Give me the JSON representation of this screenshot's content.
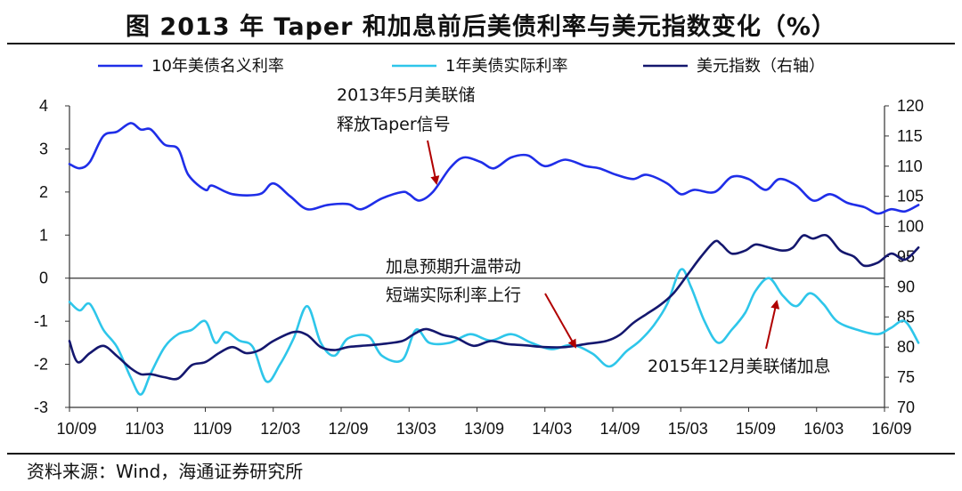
{
  "title": "图  2013 年 Taper 和加息前后美债利率与美元指数变化（%）",
  "source": "资料来源：Wind，海通证券研究所",
  "chart_data": {
    "type": "line",
    "x_labels": [
      "10/09",
      "11/03",
      "11/09",
      "12/03",
      "12/09",
      "13/03",
      "13/09",
      "14/03",
      "14/09",
      "15/03",
      "15/09",
      "16/03",
      "16/09"
    ],
    "y_left": {
      "range": [
        -3,
        4
      ],
      "ticks": [
        "-3",
        "-2",
        "-1",
        "0",
        "1",
        "2",
        "3",
        "4"
      ]
    },
    "y_right": {
      "range": [
        70,
        120
      ],
      "ticks": [
        "70",
        "75",
        "80",
        "85",
        "90",
        "95",
        "100",
        "105",
        "110",
        "115",
        "120"
      ]
    },
    "legend": [
      {
        "name": "10年美债名义利率",
        "color": "#1f2ee8"
      },
      {
        "name": "1年美债实际利率",
        "color": "#2ec6ea"
      },
      {
        "name": "美元指数（右轴）",
        "color": "#14176e"
      }
    ],
    "series": [
      {
        "name": "10年美债名义利率",
        "axis": "left",
        "color": "#1f2ee8",
        "values": [
          [
            0,
            2.65
          ],
          [
            0.15,
            2.55
          ],
          [
            0.3,
            2.7
          ],
          [
            0.5,
            3.3
          ],
          [
            0.7,
            3.4
          ],
          [
            0.9,
            3.6
          ],
          [
            1.05,
            3.45
          ],
          [
            1.2,
            3.45
          ],
          [
            1.4,
            3.1
          ],
          [
            1.6,
            3.0
          ],
          [
            1.75,
            2.4
          ],
          [
            2.0,
            2.05
          ],
          [
            2.1,
            2.15
          ],
          [
            2.4,
            1.95
          ],
          [
            2.8,
            1.95
          ],
          [
            3.0,
            2.2
          ],
          [
            3.25,
            1.9
          ],
          [
            3.5,
            1.6
          ],
          [
            3.8,
            1.7
          ],
          [
            4.1,
            1.72
          ],
          [
            4.3,
            1.6
          ],
          [
            4.6,
            1.85
          ],
          [
            4.9,
            2.0
          ],
          [
            5.0,
            1.95
          ],
          [
            5.15,
            1.8
          ],
          [
            5.35,
            2.0
          ],
          [
            5.6,
            2.55
          ],
          [
            5.8,
            2.8
          ],
          [
            6.05,
            2.7
          ],
          [
            6.25,
            2.55
          ],
          [
            6.5,
            2.8
          ],
          [
            6.75,
            2.85
          ],
          [
            7.0,
            2.6
          ],
          [
            7.3,
            2.75
          ],
          [
            7.6,
            2.6
          ],
          [
            7.8,
            2.55
          ],
          [
            8.05,
            2.4
          ],
          [
            8.3,
            2.3
          ],
          [
            8.5,
            2.4
          ],
          [
            8.8,
            2.2
          ],
          [
            9.0,
            1.95
          ],
          [
            9.2,
            2.05
          ],
          [
            9.5,
            2.0
          ],
          [
            9.75,
            2.35
          ],
          [
            10.0,
            2.3
          ],
          [
            10.25,
            2.05
          ],
          [
            10.45,
            2.3
          ],
          [
            10.7,
            2.15
          ],
          [
            10.95,
            1.8
          ],
          [
            11.2,
            1.95
          ],
          [
            11.45,
            1.75
          ],
          [
            11.7,
            1.65
          ],
          [
            11.9,
            1.5
          ],
          [
            12.1,
            1.6
          ],
          [
            12.3,
            1.55
          ],
          [
            12.5,
            1.7
          ]
        ]
      },
      {
        "name": "1年美债实际利率",
        "axis": "left",
        "color": "#2ec6ea",
        "values": [
          [
            0,
            -0.55
          ],
          [
            0.15,
            -0.75
          ],
          [
            0.3,
            -0.6
          ],
          [
            0.5,
            -1.2
          ],
          [
            0.7,
            -1.6
          ],
          [
            0.9,
            -2.3
          ],
          [
            1.05,
            -2.7
          ],
          [
            1.2,
            -2.2
          ],
          [
            1.4,
            -1.6
          ],
          [
            1.6,
            -1.3
          ],
          [
            1.8,
            -1.2
          ],
          [
            2.0,
            -1.0
          ],
          [
            2.15,
            -1.5
          ],
          [
            2.3,
            -1.25
          ],
          [
            2.5,
            -1.45
          ],
          [
            2.7,
            -1.6
          ],
          [
            2.9,
            -2.4
          ],
          [
            3.1,
            -2.0
          ],
          [
            3.3,
            -1.4
          ],
          [
            3.5,
            -0.65
          ],
          [
            3.7,
            -1.5
          ],
          [
            3.9,
            -1.8
          ],
          [
            4.1,
            -1.4
          ],
          [
            4.4,
            -1.35
          ],
          [
            4.6,
            -1.8
          ],
          [
            4.9,
            -1.9
          ],
          [
            5.1,
            -1.2
          ],
          [
            5.3,
            -1.5
          ],
          [
            5.6,
            -1.5
          ],
          [
            5.9,
            -1.3
          ],
          [
            6.2,
            -1.45
          ],
          [
            6.5,
            -1.3
          ],
          [
            6.8,
            -1.5
          ],
          [
            7.1,
            -1.65
          ],
          [
            7.4,
            -1.55
          ],
          [
            7.7,
            -1.75
          ],
          [
            7.95,
            -2.05
          ],
          [
            8.2,
            -1.7
          ],
          [
            8.4,
            -1.45
          ],
          [
            8.6,
            -1.1
          ],
          [
            8.8,
            -0.6
          ],
          [
            9.0,
            0.2
          ],
          [
            9.15,
            -0.2
          ],
          [
            9.35,
            -1.0
          ],
          [
            9.55,
            -1.5
          ],
          [
            9.75,
            -1.2
          ],
          [
            9.95,
            -0.8
          ],
          [
            10.1,
            -0.3
          ],
          [
            10.3,
            0.0
          ],
          [
            10.5,
            -0.4
          ],
          [
            10.7,
            -0.65
          ],
          [
            10.9,
            -0.35
          ],
          [
            11.1,
            -0.6
          ],
          [
            11.3,
            -1.0
          ],
          [
            11.6,
            -1.2
          ],
          [
            11.9,
            -1.3
          ],
          [
            12.1,
            -1.15
          ],
          [
            12.3,
            -1.0
          ],
          [
            12.5,
            -1.5
          ]
        ]
      },
      {
        "name": "美元指数（右轴）",
        "axis": "right",
        "color": "#14176e",
        "values": [
          [
            0,
            81.0
          ],
          [
            0.12,
            77.5
          ],
          [
            0.3,
            79.0
          ],
          [
            0.5,
            80.2
          ],
          [
            0.7,
            78.5
          ],
          [
            0.9,
            76.5
          ],
          [
            1.05,
            75.5
          ],
          [
            1.2,
            75.5
          ],
          [
            1.4,
            75.0
          ],
          [
            1.6,
            74.8
          ],
          [
            1.8,
            77.0
          ],
          [
            2.0,
            77.5
          ],
          [
            2.2,
            79.0
          ],
          [
            2.4,
            80.0
          ],
          [
            2.6,
            79.0
          ],
          [
            2.8,
            79.5
          ],
          [
            3.0,
            81.0
          ],
          [
            3.3,
            82.5
          ],
          [
            3.5,
            82.0
          ],
          [
            3.7,
            80.0
          ],
          [
            3.9,
            79.5
          ],
          [
            4.1,
            80.0
          ],
          [
            4.3,
            80.2
          ],
          [
            4.6,
            80.5
          ],
          [
            4.9,
            81.0
          ],
          [
            5.05,
            82.0
          ],
          [
            5.25,
            83.0
          ],
          [
            5.5,
            82.0
          ],
          [
            5.7,
            81.5
          ],
          [
            5.95,
            80.2
          ],
          [
            6.2,
            81.0
          ],
          [
            6.45,
            80.5
          ],
          [
            6.7,
            80.3
          ],
          [
            7.0,
            80.0
          ],
          [
            7.3,
            80.0
          ],
          [
            7.6,
            80.5
          ],
          [
            7.9,
            81.0
          ],
          [
            8.1,
            82.0
          ],
          [
            8.3,
            84.0
          ],
          [
            8.5,
            85.5
          ],
          [
            8.7,
            87.0
          ],
          [
            8.9,
            89.0
          ],
          [
            9.1,
            92.0
          ],
          [
            9.3,
            95.0
          ],
          [
            9.5,
            97.5
          ],
          [
            9.6,
            97.0
          ],
          [
            9.75,
            95.5
          ],
          [
            9.95,
            96.0
          ],
          [
            10.1,
            97.0
          ],
          [
            10.3,
            96.5
          ],
          [
            10.5,
            96.0
          ],
          [
            10.65,
            96.5
          ],
          [
            10.8,
            98.5
          ],
          [
            10.95,
            98.0
          ],
          [
            11.15,
            98.5
          ],
          [
            11.35,
            96.0
          ],
          [
            11.55,
            95.0
          ],
          [
            11.7,
            93.5
          ],
          [
            11.9,
            94.0
          ],
          [
            12.1,
            95.5
          ],
          [
            12.3,
            94.5
          ],
          [
            12.5,
            96.5
          ]
        ]
      }
    ],
    "annotations": [
      {
        "lines": [
          "2013年5月美联储",
          "释放Taper信号"
        ]
      },
      {
        "lines": [
          "加息预期升温带动",
          "短端实际利率上行"
        ]
      },
      {
        "lines": [
          "2015年12月美联储加息"
        ]
      }
    ]
  }
}
